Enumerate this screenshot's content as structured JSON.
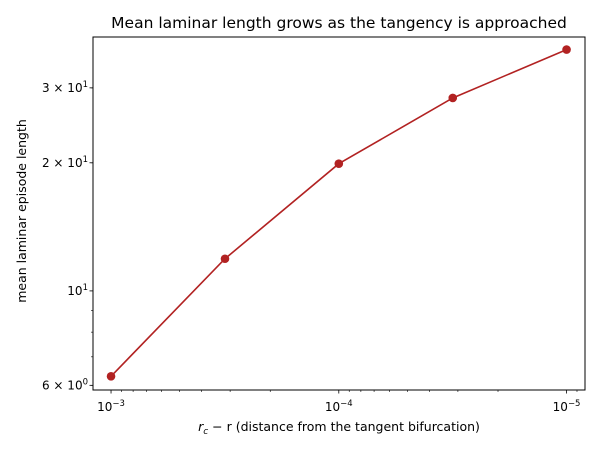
{
  "chart_data": {
    "type": "line",
    "title": "Mean laminar length grows as the tangency is approached",
    "xlabel_italic": "r",
    "xlabel_sub": "c",
    "xlabel_rest": " − r (distance from the tangent bifurcation)",
    "ylabel": "mean laminar episode length",
    "x_scale": "log",
    "y_scale": "log",
    "x_axis_inverted": true,
    "xlim": [
      0.0012,
      8.3e-06
    ],
    "ylim": [
      5.85,
      39.5
    ],
    "grid": false,
    "legend": "none",
    "x_ticks": [
      {
        "value": 0.001,
        "base": "10",
        "exp": "−3"
      },
      {
        "value": 0.0001,
        "base": "10",
        "exp": "−4"
      },
      {
        "value": 1e-05,
        "base": "10",
        "exp": "−5"
      }
    ],
    "y_ticks": [
      {
        "value": 6,
        "label": "6 × 10",
        "exp": "0"
      },
      {
        "value": 10,
        "label": "10",
        "exp": "1"
      },
      {
        "value": 20,
        "label": "2 × 10",
        "exp": "1"
      },
      {
        "value": 30,
        "label": "3 × 10",
        "exp": "1"
      }
    ],
    "series": [
      {
        "color": "#b22222",
        "x": [
          0.001,
          0.000316,
          0.0001,
          3.16e-05,
          1e-05
        ],
        "y": [
          6.3,
          11.9,
          19.9,
          28.4,
          36.9
        ]
      }
    ]
  }
}
